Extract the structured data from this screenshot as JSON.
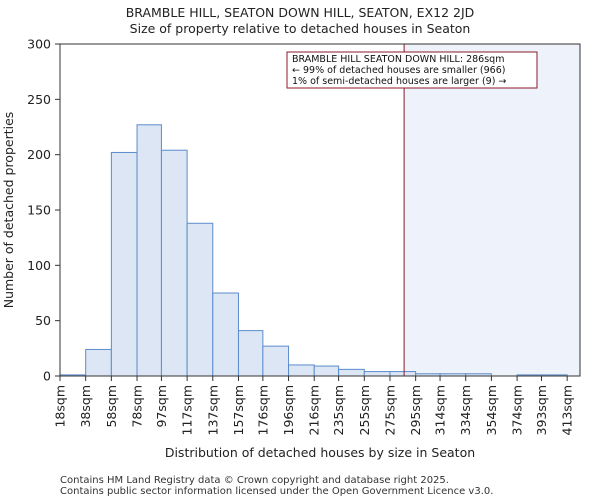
{
  "chart_data": {
    "type": "bar",
    "title": "BRAMBLE HILL, SEATON DOWN HILL, SEATON, EX12 2JD",
    "subtitle": "Size of property relative to detached houses in Seaton",
    "xlabel": "Distribution of detached houses by size in Seaton",
    "ylabel": "Number of detached properties",
    "ylim": [
      0,
      300
    ],
    "yticks": [
      0,
      50,
      100,
      150,
      200,
      250,
      300
    ],
    "xlim": [
      18,
      423
    ],
    "categories": [
      "18sqm",
      "38sqm",
      "58sqm",
      "78sqm",
      "97sqm",
      "117sqm",
      "137sqm",
      "157sqm",
      "176sqm",
      "196sqm",
      "216sqm",
      "235sqm",
      "255sqm",
      "275sqm",
      "295sqm",
      "314sqm",
      "334sqm",
      "354sqm",
      "374sqm",
      "393sqm",
      "413sqm"
    ],
    "bin_edges": [
      18,
      38,
      58,
      78,
      97,
      117,
      137,
      157,
      176,
      196,
      216,
      235,
      255,
      275,
      295,
      314,
      334,
      354,
      374,
      393,
      413,
      423
    ],
    "values": [
      1,
      24,
      202,
      227,
      204,
      138,
      75,
      41,
      27,
      10,
      9,
      6,
      4,
      4,
      2,
      2,
      2,
      0,
      1,
      1,
      0
    ],
    "marker": {
      "value": 286,
      "label_lines": [
        "BRAMBLE HILL SEATON DOWN HILL: 286sqm",
        "← 99% of detached houses are smaller (966)",
        "1% of semi-detached houses are larger (9) →"
      ],
      "line_color": "#8b1a2b"
    },
    "grid": false,
    "colors": {
      "bar_fill": "#dce6f4",
      "bar_stroke": "#5b8ccc",
      "shade": "#eef2fa"
    }
  },
  "footer": {
    "line1": "Contains HM Land Registry data © Crown copyright and database right 2025.",
    "line2": "Contains public sector information licensed under the Open Government Licence v3.0."
  }
}
